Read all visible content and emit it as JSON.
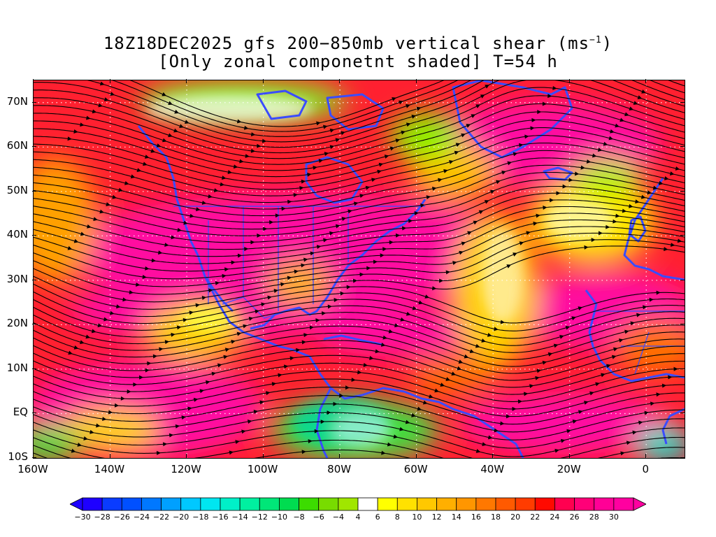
{
  "title": {
    "line1": "18Z18DEC2025 gfs 200−850mb vertical shear (ms",
    "line1_sup": "−1",
    "line1_end": ")",
    "line2": "[Only zonal componetnt shaded] T=54 h"
  },
  "map": {
    "lon_range": [
      -160,
      10
    ],
    "lat_range": [
      -10,
      75
    ],
    "y_ticks": [
      {
        "lat": 70,
        "label": "70N"
      },
      {
        "lat": 60,
        "label": "60N"
      },
      {
        "lat": 50,
        "label": "50N"
      },
      {
        "lat": 40,
        "label": "40N"
      },
      {
        "lat": 30,
        "label": "30N"
      },
      {
        "lat": 20,
        "label": "20N"
      },
      {
        "lat": 10,
        "label": "10N"
      },
      {
        "lat": 0,
        "label": "EQ"
      },
      {
        "lat": -10,
        "label": "10S"
      }
    ],
    "x_ticks": [
      {
        "lon": -160,
        "label": "160W"
      },
      {
        "lon": -140,
        "label": "140W"
      },
      {
        "lon": -120,
        "label": "120W"
      },
      {
        "lon": -100,
        "label": "100W"
      },
      {
        "lon": -80,
        "label": "80W"
      },
      {
        "lon": -60,
        "label": "60W"
      },
      {
        "lon": -40,
        "label": "40W"
      },
      {
        "lon": -20,
        "label": "20W"
      },
      {
        "lon": 0,
        "label": "0"
      }
    ],
    "coastline_color": "#3a4cff",
    "streamline_color": "#000000",
    "gridline_style": "dotted white"
  },
  "colorbar": {
    "labels": [
      "−30",
      "−28",
      "−26",
      "−24",
      "−22",
      "−20",
      "−18",
      "−16",
      "−14",
      "−12",
      "−10",
      "−8",
      "−6",
      "−4",
      "4",
      "6",
      "8",
      "10",
      "12",
      "14",
      "16",
      "18",
      "20",
      "22",
      "24",
      "26",
      "28",
      "30"
    ],
    "colors": [
      "#1e00ff",
      "#0a3cff",
      "#0050ff",
      "#0078ff",
      "#00a0ff",
      "#00c8ff",
      "#00e6f0",
      "#00f0c8",
      "#00f0a0",
      "#00e678",
      "#00dc50",
      "#3cdc00",
      "#78dc00",
      "#a0e600",
      "#ffffff",
      "#ffff00",
      "#ffe100",
      "#ffc800",
      "#ffaf00",
      "#ff9600",
      "#ff7800",
      "#ff5a00",
      "#ff3c00",
      "#ff0a00",
      "#ff0050",
      "#ff0078",
      "#ff0096",
      "#ff00a0"
    ],
    "left_arrow_color": "#1e00ff",
    "right_arrow_color": "#ff00a0"
  }
}
